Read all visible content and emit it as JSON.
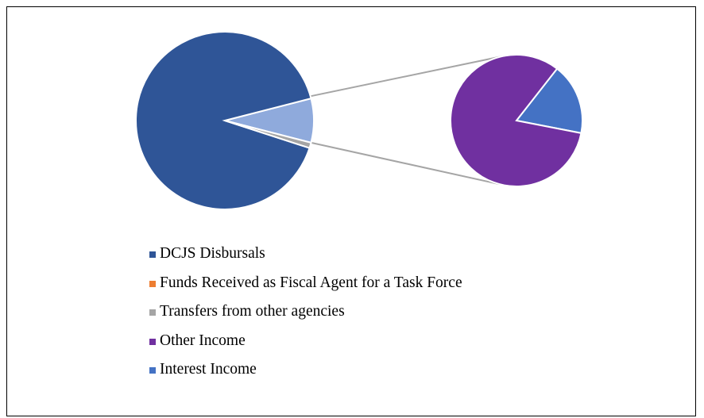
{
  "chart_data": {
    "type": "pie",
    "subtype": "pie-of-pie",
    "slices": [
      {
        "name": "DCJS Disbursals",
        "value": 91,
        "color": "#2f5597"
      },
      {
        "name": "Funds Received as Fiscal Agent for a Task Force",
        "value": 0,
        "color": "#ed7d31"
      },
      {
        "name": "Transfers from other agencies",
        "value": 1,
        "color": "#a5a5a5"
      },
      {
        "name": "Other Income",
        "value": 6.6,
        "color": "#7030a0"
      },
      {
        "name": "Interest Income",
        "value": 1.4,
        "color": "#4472c4"
      }
    ],
    "secondary_group": {
      "color": "#8faadc",
      "members": [
        "Other Income",
        "Interest Income"
      ]
    },
    "connector_color": "#a5a5a5",
    "legend_position": "bottom"
  }
}
